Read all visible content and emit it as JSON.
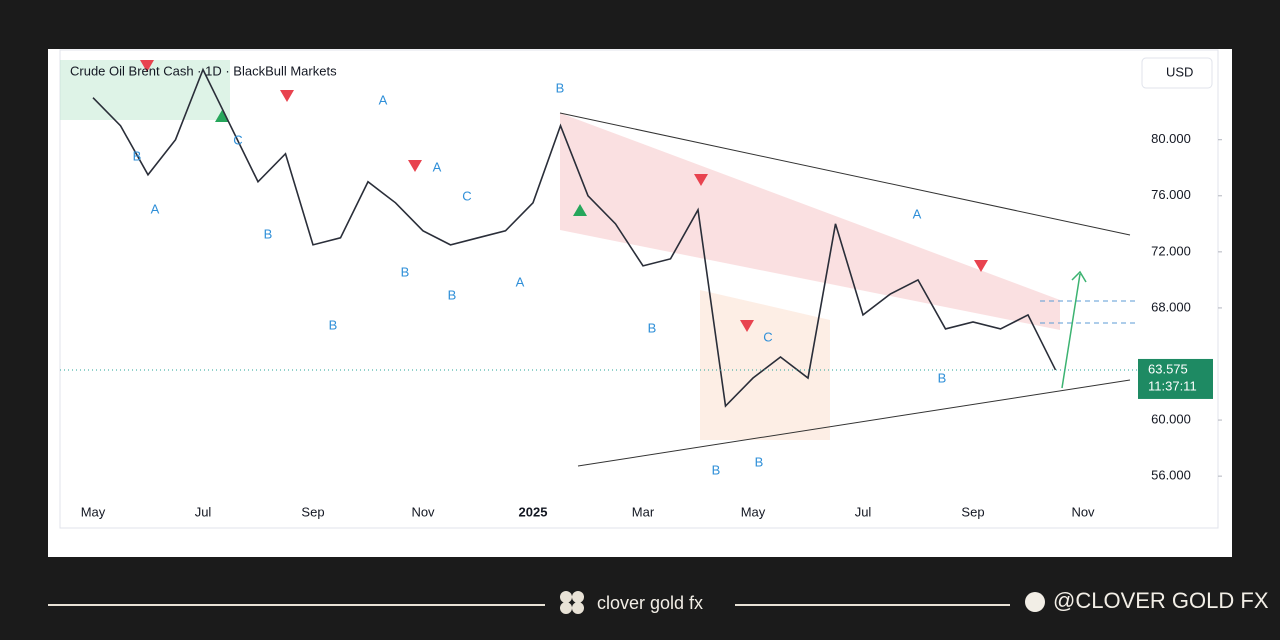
{
  "header": {
    "title": "Crude Oil Brent Cash · 1D · BlackBull Markets",
    "currency": "USD"
  },
  "chart_data": {
    "type": "line",
    "categories": [
      "May",
      null,
      null,
      null,
      "Jul",
      null,
      null,
      null,
      "Sep",
      null,
      null,
      null,
      "Nov",
      null,
      null,
      null,
      "2025",
      null,
      null,
      null,
      "Mar",
      null,
      null,
      null,
      "May",
      null,
      null,
      null,
      "Jul",
      null,
      null,
      null,
      "Sep",
      null,
      null,
      null,
      "Nov"
    ],
    "values": [
      83,
      81,
      77.5,
      80,
      85,
      81,
      77,
      79,
      72.5,
      73,
      77,
      75.5,
      73.5,
      72.5,
      73,
      73.5,
      75.5,
      81,
      76,
      74,
      71,
      71.5,
      75,
      61,
      63,
      64.5,
      63,
      74,
      67.5,
      69,
      70,
      66.5,
      67,
      66.5,
      67.5,
      63.575,
      null
    ],
    "color": "#2a2e39",
    "ylim": [
      52.3,
      86.4
    ],
    "yticks": [
      {
        "value": 56,
        "label": "56.000"
      },
      {
        "value": 60,
        "label": "60.000"
      },
      {
        "value": 68,
        "label": "68.000"
      },
      {
        "value": 72,
        "label": "72.000"
      },
      {
        "value": 76,
        "label": "76.000"
      },
      {
        "value": 80,
        "label": "80.000"
      }
    ],
    "last_price": 63.575,
    "countdown": "11:37:11",
    "wave_labels": [
      "B",
      "A",
      "C",
      "B",
      "B",
      "A",
      "B",
      "A",
      "B",
      "C",
      "A",
      "B",
      "B",
      "B",
      "B",
      "C",
      "A",
      "B"
    ]
  },
  "footer": {
    "brand": "clover gold fx",
    "handle": "@CLOVER GOLD FX"
  }
}
